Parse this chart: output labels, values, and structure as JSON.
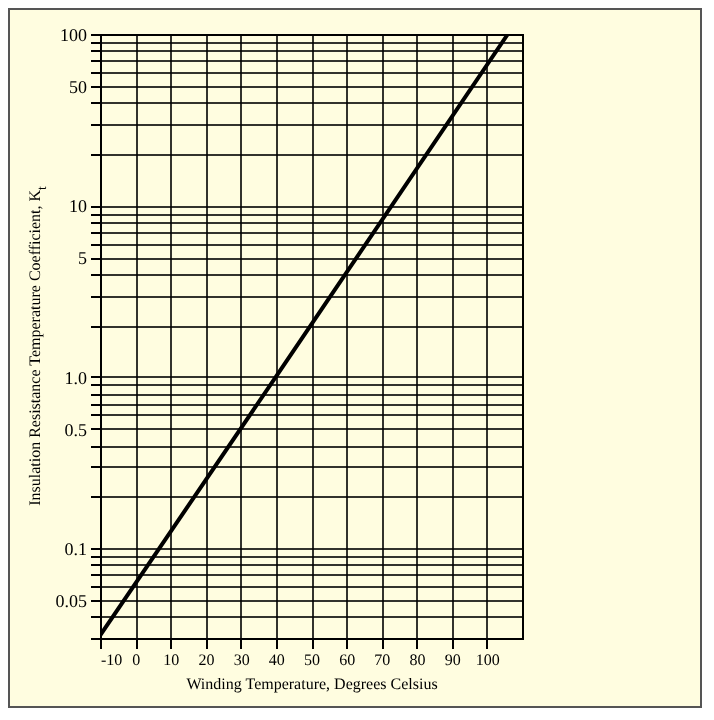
{
  "chart_data": {
    "type": "line",
    "xlabel": "Winding Temperature, Degrees Celsius",
    "ylabel": "Insulation Resistance Temperature Coefficient, K$_{t}$",
    "x": [
      -10,
      40,
      106
    ],
    "series": [
      {
        "color": "#000000",
        "values": [
          0.031,
          1,
          100
        ]
      }
    ],
    "log": "y",
    "grid": true,
    "marker": "none",
    "line_style": "solid",
    "xlim": [
      -10,
      110
    ],
    "xticks": [
      -10,
      0,
      10,
      20,
      30,
      40,
      50,
      60,
      70,
      80,
      90,
      100
    ],
    "ylim": [
      0.03,
      100
    ],
    "yticks": [
      {
        "value": 0.03,
        "label": null
      },
      {
        "value": 0.04,
        "label": null
      },
      {
        "value": 0.05,
        "label": "0.05"
      },
      {
        "value": 0.06,
        "label": null
      },
      {
        "value": 0.07,
        "label": null
      },
      {
        "value": 0.08,
        "label": null
      },
      {
        "value": 0.09,
        "label": null
      },
      {
        "value": 0.1,
        "label": "0.1"
      },
      {
        "value": 0.2,
        "label": null
      },
      {
        "value": 0.3,
        "label": null
      },
      {
        "value": 0.4,
        "label": null
      },
      {
        "value": 0.5,
        "label": "0.5"
      },
      {
        "value": 0.6,
        "label": null
      },
      {
        "value": 0.7,
        "label": null
      },
      {
        "value": 0.8,
        "label": null
      },
      {
        "value": 0.9,
        "label": null
      },
      {
        "value": 1,
        "label": "1.0"
      },
      {
        "value": 2,
        "label": null
      },
      {
        "value": 3,
        "label": null
      },
      {
        "value": 4,
        "label": null
      },
      {
        "value": 5,
        "label": "5"
      },
      {
        "value": 6,
        "label": null
      },
      {
        "value": 7,
        "label": null
      },
      {
        "value": 8,
        "label": null
      },
      {
        "value": 9,
        "label": null
      },
      {
        "value": 10,
        "label": "10"
      },
      {
        "value": 20,
        "label": null
      },
      {
        "value": 30,
        "label": null
      },
      {
        "value": 40,
        "label": null
      },
      {
        "value": 50,
        "label": "50"
      },
      {
        "value": 60,
        "label": null
      },
      {
        "value": 70,
        "label": null
      },
      {
        "value": 80,
        "label": null
      },
      {
        "value": 90,
        "label": null
      },
      {
        "value": 100,
        "label": "100"
      }
    ]
  }
}
